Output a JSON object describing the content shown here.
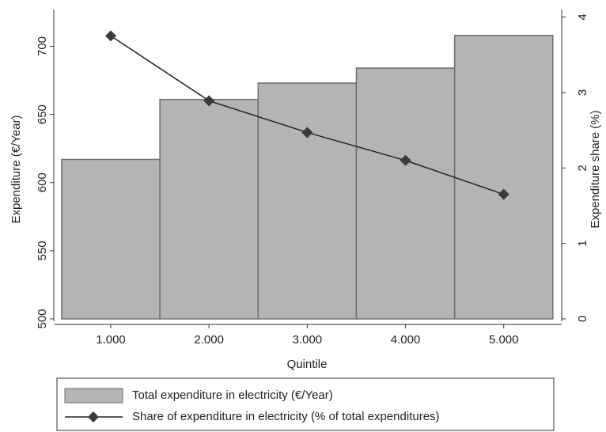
{
  "chart_data": {
    "type": "bar",
    "x": [
      1,
      2,
      3,
      4,
      5
    ],
    "xlim": [
      0.42,
      5.59
    ],
    "xticks": [
      {
        "value": 1,
        "label": "1.000"
      },
      {
        "value": 2,
        "label": "2.000"
      },
      {
        "value": 3,
        "label": "3.000"
      },
      {
        "value": 4,
        "label": "4.000"
      },
      {
        "value": 5,
        "label": "5.000"
      }
    ],
    "x_label": "Quintile",
    "y_label": "Expenditure (€/Year)",
    "y2_label": "Expenditure share (%)",
    "ylim": [
      500,
      727
    ],
    "yticks": [
      500,
      550,
      600,
      650,
      700
    ],
    "y2lim": [
      0,
      4.1
    ],
    "y2ticks": [
      0,
      1,
      2,
      3,
      4
    ],
    "series": [
      {
        "name": "Total expenditure in electricity (€/Year)",
        "type": "bar",
        "color": "#b4b4b4",
        "values": [
          617,
          661,
          673,
          684,
          708
        ]
      },
      {
        "name": "Share of expenditure in electricity (% of total expenditures)",
        "type": "line",
        "axis": "y2",
        "color": "#222222",
        "values": [
          3.75,
          2.89,
          2.47,
          2.1,
          1.65
        ]
      }
    ]
  }
}
